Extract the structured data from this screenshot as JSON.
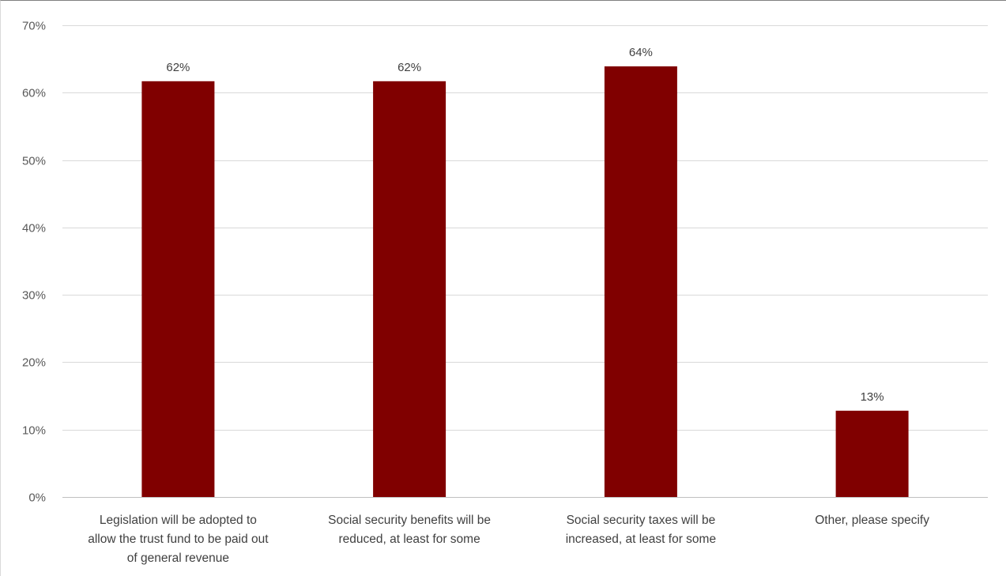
{
  "chart_data": {
    "type": "bar",
    "title": "",
    "xlabel": "",
    "ylabel": "",
    "categories": [
      "Legislation will be adopted to allow the trust fund to be paid out of general revenue",
      "Social security benefits will be reduced, at least for some",
      "Social security taxes will be increased, at least for some",
      "Other, please specify"
    ],
    "category_lines": [
      [
        "Legislation will be adopted to",
        "allow the trust fund to be paid out",
        "of general revenue"
      ],
      [
        "Social security benefits will be",
        "reduced, at least for some"
      ],
      [
        "Social security taxes will be",
        "increased, at least for some"
      ],
      [
        "Other, please specify"
      ]
    ],
    "values": [
      61.7,
      61.7,
      63.9,
      12.8
    ],
    "data_labels": [
      "62%",
      "62%",
      "64%",
      "13%"
    ],
    "ylim": [
      0,
      70
    ],
    "yticks": [
      0,
      10,
      20,
      30,
      40,
      50,
      60,
      70
    ],
    "ytick_labels": [
      "0%",
      "10%",
      "20%",
      "30%",
      "40%",
      "50%",
      "60%",
      "70%"
    ],
    "grid": true,
    "legend": "none",
    "bar_color": "#800000",
    "grid_color": "#d9d9d9",
    "axis_color": "#bfbfbf"
  }
}
